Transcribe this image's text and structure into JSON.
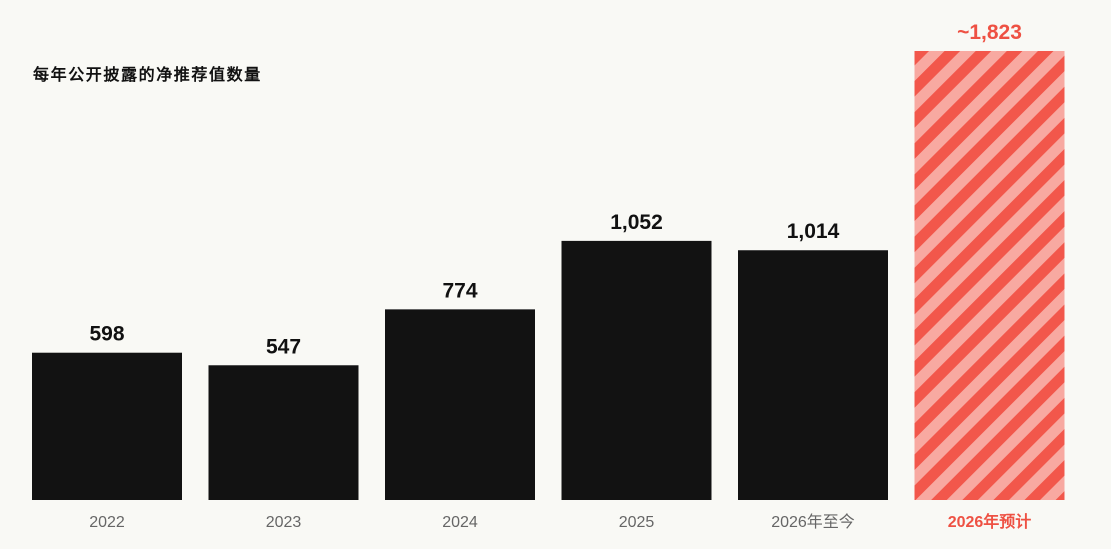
{
  "chart_data": {
    "type": "bar",
    "title": "每年公开披露的净推荐值数量",
    "xlabel": "",
    "ylabel": "",
    "categories": [
      "2022",
      "2023",
      "2024",
      "2025",
      "2026年至今",
      "2026年预计"
    ],
    "values": [
      598,
      547,
      774,
      1052,
      1014,
      1823
    ],
    "value_labels": [
      "598",
      "547",
      "774",
      "1,052",
      "1,014",
      "~1,823"
    ],
    "projected_index": 5,
    "ylim": [
      0,
      2030
    ],
    "grid": false,
    "legend": "none",
    "colors": {
      "bar": "#121212",
      "projected_dark": "#f2574b",
      "projected_light": "#f8a9a1",
      "projected_text": "#ee5143",
      "value_text": "#111111",
      "category_text": "#666666",
      "background": "#f9f9f5"
    }
  }
}
